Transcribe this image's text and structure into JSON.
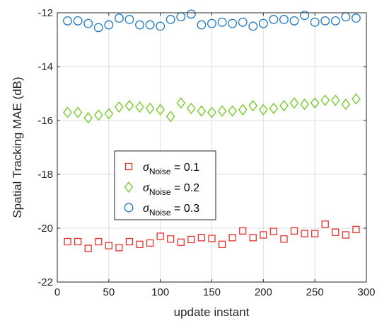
{
  "chart_data": {
    "type": "scatter",
    "title": "",
    "xlabel": "update instant",
    "ylabel": "Spatial Tracking MAE (dB)",
    "xlim": [
      0,
      300
    ],
    "ylim": [
      -22,
      -12
    ],
    "xticks": [
      0,
      50,
      100,
      150,
      200,
      250,
      300
    ],
    "yticks": [
      -22,
      -20,
      -18,
      -16,
      -14,
      -12
    ],
    "grid": true,
    "legend_position": "lower-left-center",
    "x": [
      10,
      20,
      30,
      40,
      50,
      60,
      70,
      80,
      90,
      100,
      110,
      120,
      130,
      140,
      150,
      160,
      170,
      180,
      190,
      200,
      210,
      220,
      230,
      240,
      250,
      260,
      270,
      280,
      290
    ],
    "series": [
      {
        "name": "σNoise = 0.1",
        "legend_symbol": "σ",
        "legend_sub": "Noise",
        "legend_value": " = 0.1",
        "marker": "square",
        "color": "#e8302b",
        "values": [
          -20.5,
          -20.5,
          -20.75,
          -20.5,
          -20.65,
          -20.72,
          -20.5,
          -20.6,
          -20.55,
          -20.3,
          -20.4,
          -20.52,
          -20.42,
          -20.35,
          -20.38,
          -20.6,
          -20.35,
          -20.1,
          -20.35,
          -20.25,
          -20.12,
          -20.4,
          -20.1,
          -20.2,
          -20.2,
          -19.85,
          -20.15,
          -20.25,
          -20.05
        ]
      },
      {
        "name": "σNoise = 0.2",
        "legend_symbol": "σ",
        "legend_sub": "Noise",
        "legend_value": " = 0.2",
        "marker": "diamond",
        "color": "#6ec81e",
        "values": [
          -15.7,
          -15.7,
          -15.9,
          -15.8,
          -15.75,
          -15.5,
          -15.45,
          -15.5,
          -15.55,
          -15.6,
          -15.85,
          -15.35,
          -15.55,
          -15.65,
          -15.7,
          -15.65,
          -15.65,
          -15.6,
          -15.45,
          -15.6,
          -15.55,
          -15.45,
          -15.35,
          -15.4,
          -15.35,
          -15.25,
          -15.25,
          -15.4,
          -15.2
        ]
      },
      {
        "name": "σNoise = 0.3",
        "legend_symbol": "σ",
        "legend_sub": "Noise",
        "legend_value": " = 0.3",
        "marker": "circle",
        "color": "#1f7ac3",
        "values": [
          -12.3,
          -12.3,
          -12.4,
          -12.55,
          -12.45,
          -12.2,
          -12.25,
          -12.45,
          -12.45,
          -12.5,
          -12.25,
          -12.15,
          -12.05,
          -12.45,
          -12.4,
          -12.35,
          -12.4,
          -12.35,
          -12.5,
          -12.4,
          -12.25,
          -12.25,
          -12.3,
          -12.1,
          -12.35,
          -12.3,
          -12.3,
          -12.15,
          -12.2
        ]
      }
    ]
  }
}
